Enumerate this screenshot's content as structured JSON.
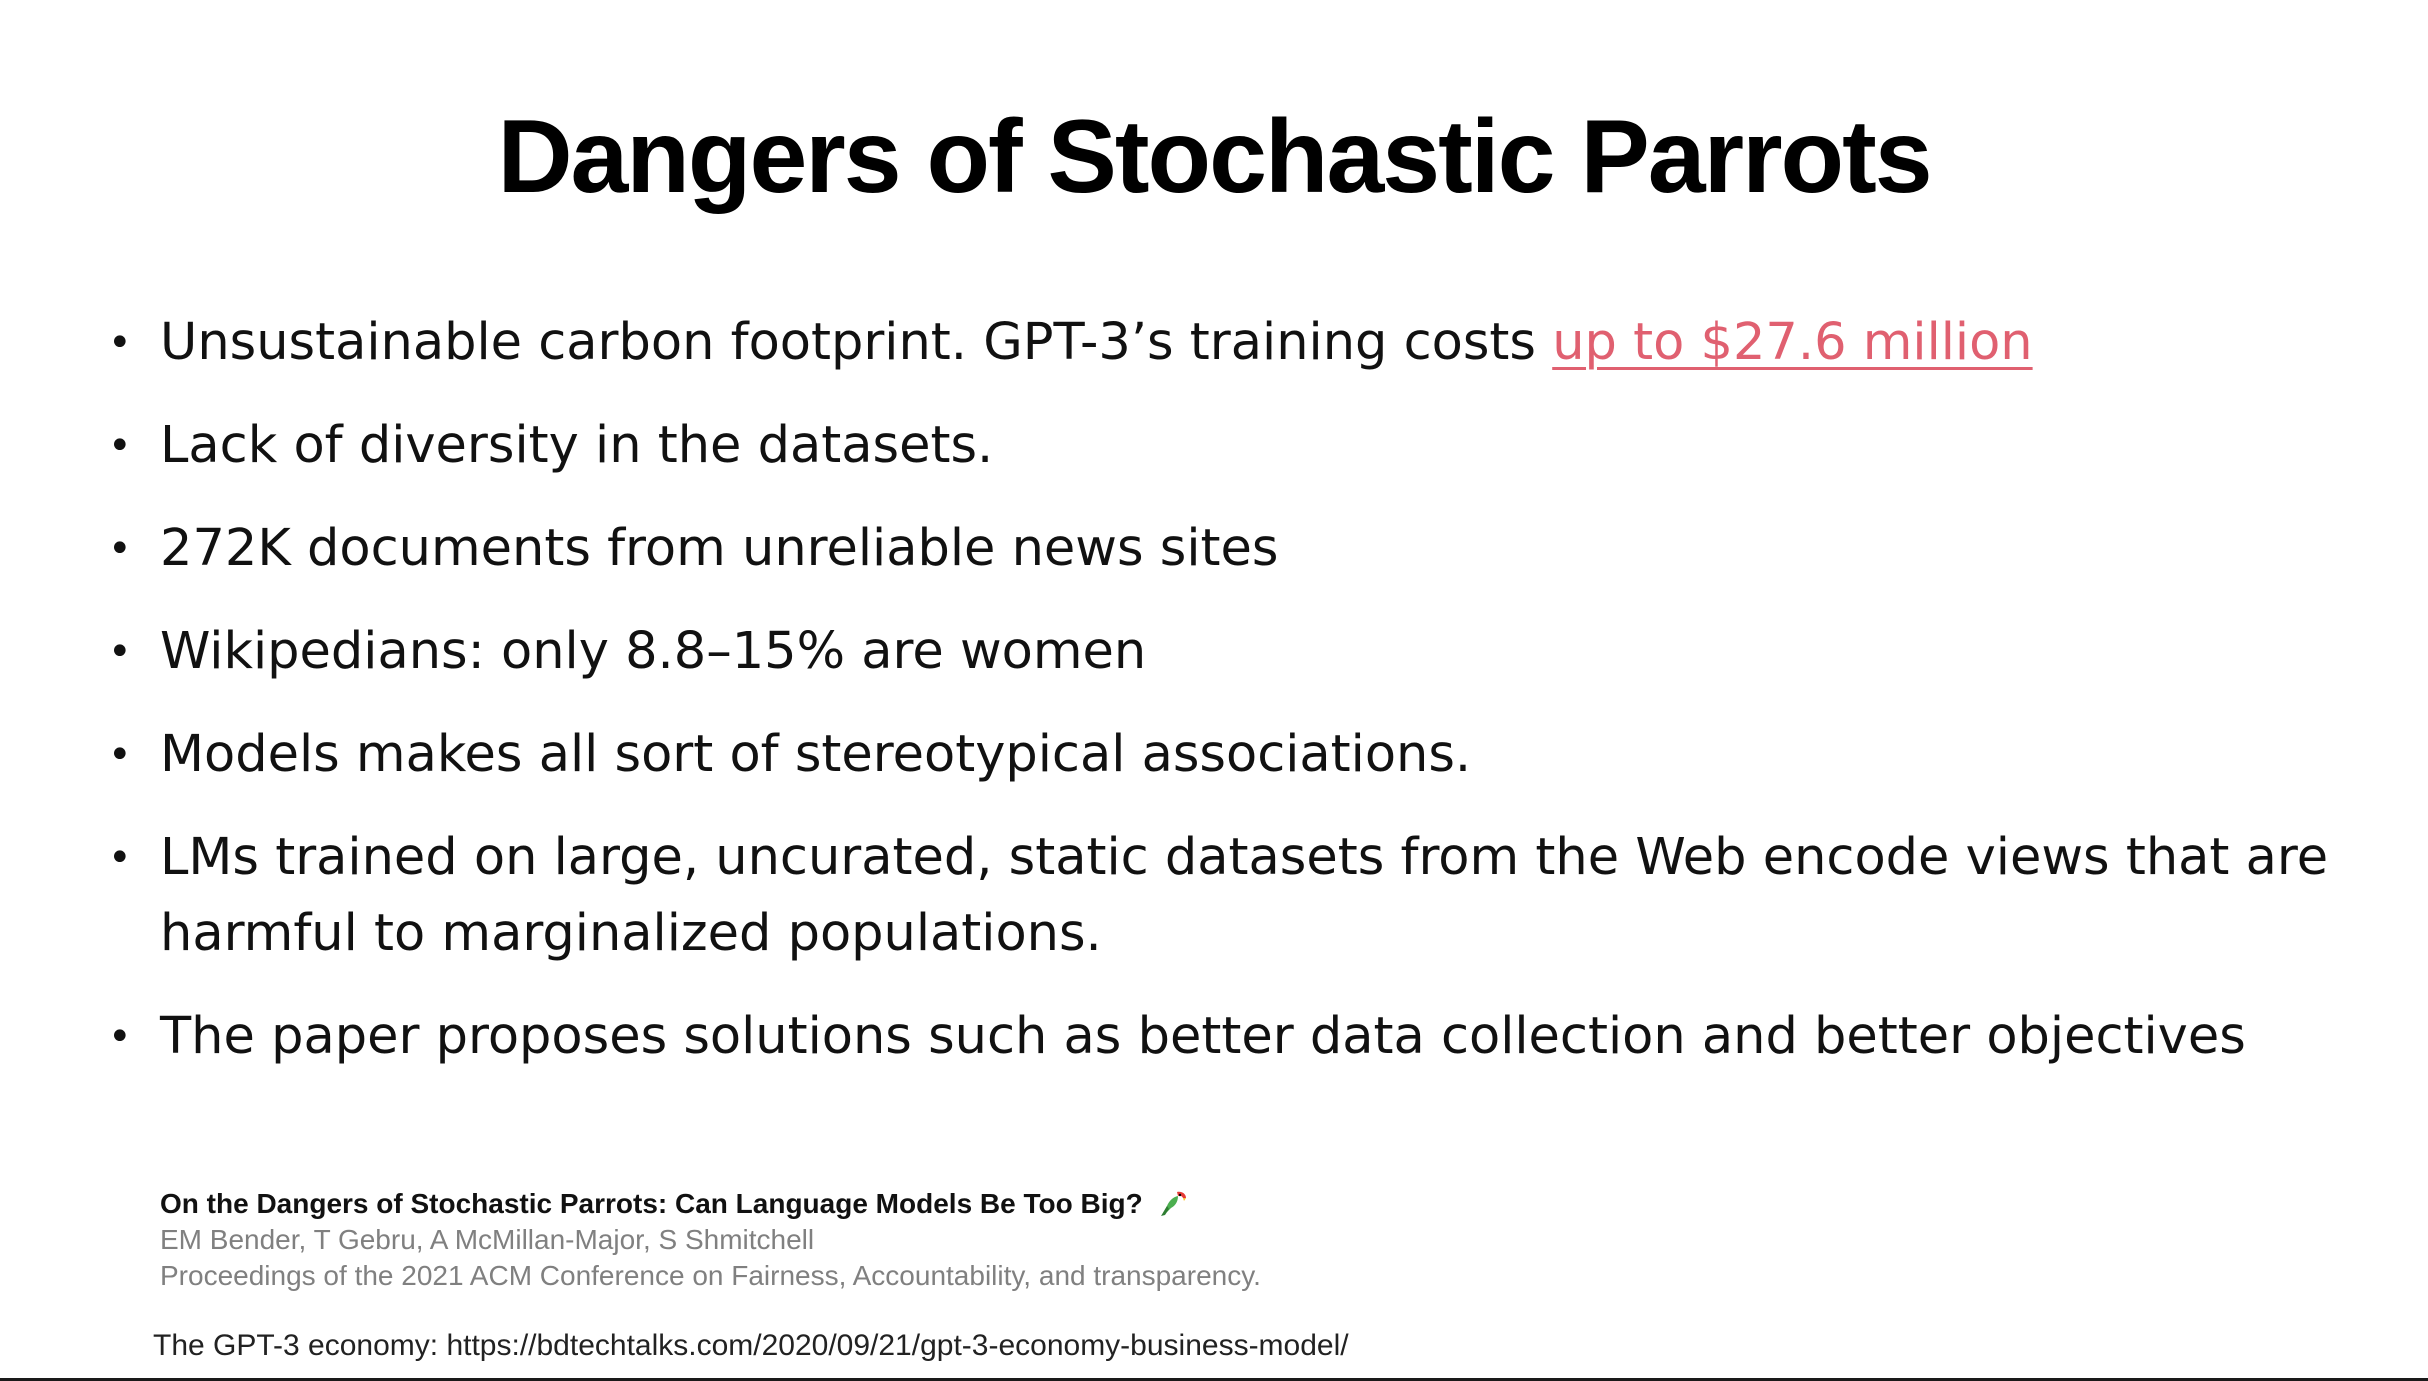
{
  "slide": {
    "title": "Dangers of Stochastic Parrots",
    "bullet_glyph": "•",
    "bullets": [
      {
        "text": "Unsustainable carbon footprint. GPT-3’s training costs ",
        "link": "up to $27.6 million"
      },
      {
        "text": "Lack of diversity in the datasets."
      },
      {
        "text": "272K documents from unreliable news sites"
      },
      {
        "text": "Wikipedians: only 8.8–15% are women"
      },
      {
        "text": "Models makes all sort of stereotypical associations."
      },
      {
        "text": "LMs trained on large, uncurated, static datasets from the Web encode views that are harmful to marginalized populations."
      },
      {
        "text": "The paper proposes solutions such as better data collection and better objectives"
      }
    ]
  },
  "citation": {
    "title": "On the Dangers of Stochastic Parrots: Can Language Models Be Too Big?",
    "icon": "parrot-icon",
    "authors": "EM Bender, T Gebru, A McMillan-Major, S Shmitchell",
    "venue": "Proceedings of the 2021 ACM Conference on Fairness, Accountability, and  transparency."
  },
  "footer": {
    "text": "The GPT-3 economy: https://bdtechtalks.com/2020/09/21/gpt-3-economy-business-model/"
  },
  "colors": {
    "link": "#e06070",
    "citation_gray": "#808080",
    "text": "#111111"
  }
}
